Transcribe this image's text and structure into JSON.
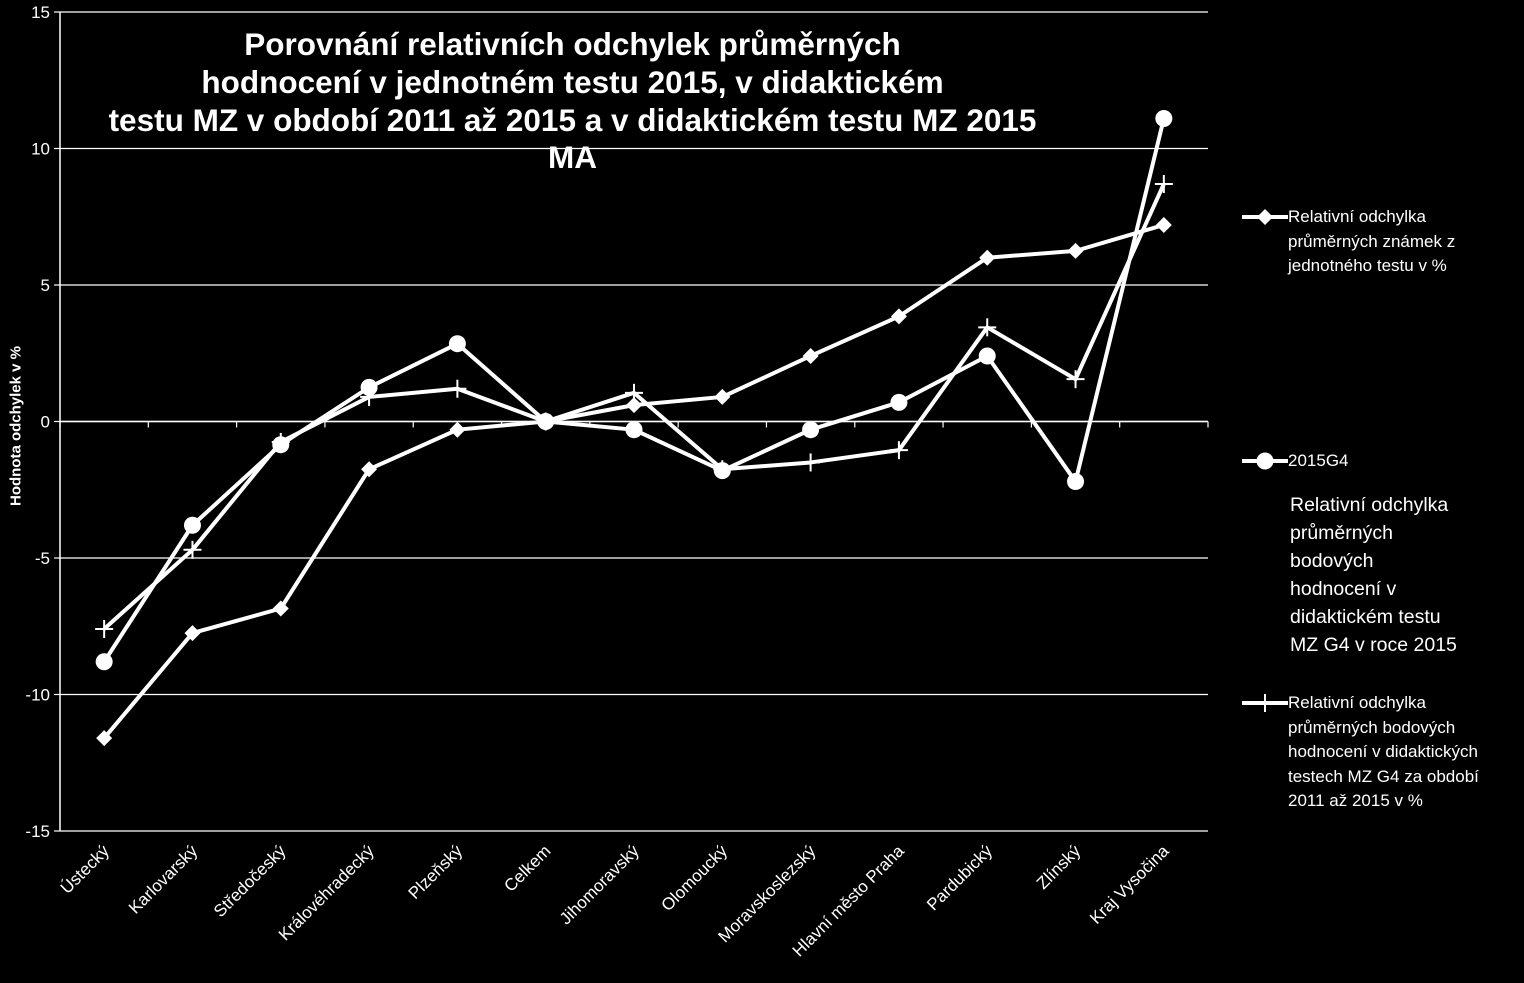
{
  "chart_data": {
    "type": "line",
    "title_lines": [
      "Porovnání relativních odchylek průměrných",
      "hodnocení v jednotném testu 2015,  v didaktickém",
      "testu MZ v období 2011 až 2015 a v didaktickém testu MZ 2015",
      "MA"
    ],
    "xlabel": "",
    "ylabel": "Hodnota odchylek v %",
    "ylim": [
      -15,
      15
    ],
    "yticks": [
      -15,
      -10,
      -5,
      0,
      5,
      10,
      15
    ],
    "ytick_labels": [
      "-15",
      "-10",
      "-5",
      "0",
      "5",
      "10",
      "15"
    ],
    "grid": true,
    "legend_position": "right",
    "categories": [
      "Ústecký",
      "Karlovarský",
      "Středočeský",
      "Královéhradecký",
      "Plzeňský",
      "Celkem",
      "Jihomoravský",
      "Olomoucký",
      "Moravskoslezský",
      "Hlavní město Praha",
      "Pardubický",
      "Zlínský",
      "Kraj Vysočina"
    ],
    "series": [
      {
        "name": "Relativní odchylka průměrných známek z jednotného testu v %",
        "legend_lines": [
          "Relativní odchylka",
          "průměrných známek z",
          "jednotného testu v %"
        ],
        "marker": "diamond",
        "color": "#ffffff",
        "values": [
          -11.6,
          -7.75,
          -6.85,
          -1.75,
          -0.3,
          0,
          0.6,
          0.9,
          2.4,
          3.85,
          6.0,
          6.25,
          7.2
        ]
      },
      {
        "name": "2015G4",
        "legend_lines": [
          "2015G4"
        ],
        "marker": "circle",
        "color": "#ffffff",
        "values": [
          -8.8,
          -3.8,
          -0.85,
          1.25,
          2.85,
          0,
          -0.3,
          -1.8,
          -0.3,
          0.7,
          2.4,
          -2.2,
          11.1
        ]
      },
      {
        "name": "Relativní odchylka průměrných bodových hodnocení v didaktických testech MZ G4 za období 2011 až 2015 v %",
        "legend_lines": [
          "Relativní odchylka",
          "průměrných bodových",
          "hodnocení v didaktických",
          "testech MZ G4 za období",
          "2011 až 2015 v %"
        ],
        "marker": "plus",
        "color": "#ffffff",
        "values": [
          -7.6,
          -4.7,
          -0.75,
          0.9,
          1.2,
          0,
          1.05,
          -1.75,
          -1.5,
          -1.05,
          3.45,
          1.55,
          8.7
        ]
      }
    ],
    "annotation_lines": [
      "Relativní odchylka",
      "průměrných",
      "bodových",
      "hodnocení v",
      "didaktickém testu",
      "MZ G4 v roce 2015"
    ]
  }
}
